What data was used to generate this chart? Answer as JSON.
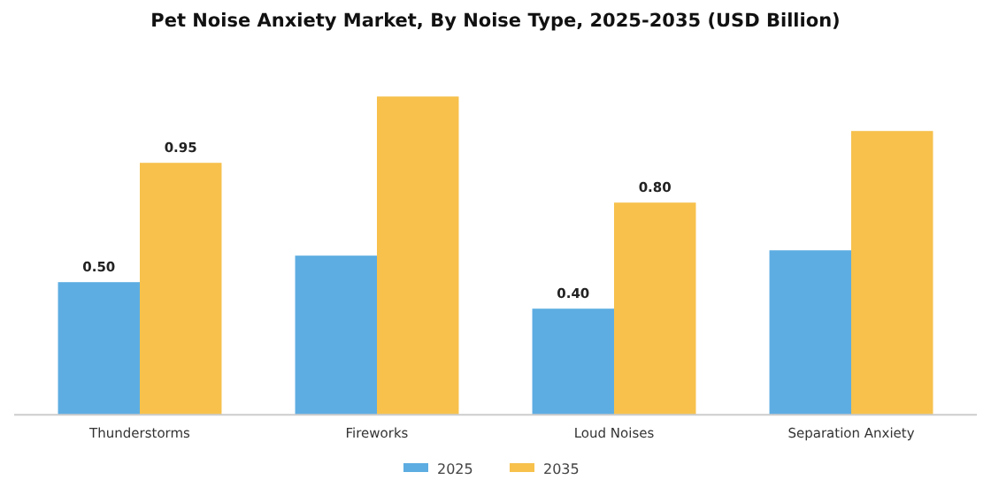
{
  "chart_data": {
    "type": "bar",
    "title": "Pet Noise Anxiety Market, By Noise Type, 2025-2035 (USD Billion)",
    "categories": [
      "Thunderstorms",
      "Fireworks",
      "Loud Noises",
      "Separation Anxiety"
    ],
    "series": [
      {
        "name": "2025",
        "color": "#5dade2",
        "values": [
          0.5,
          0.6,
          0.4,
          0.62
        ],
        "value_labels": [
          "0.50",
          null,
          "0.40",
          null
        ]
      },
      {
        "name": "2035",
        "color": "#f7c14c",
        "values": [
          0.95,
          1.2,
          0.8,
          1.07
        ],
        "value_labels": [
          "0.95",
          null,
          "0.80",
          null
        ]
      }
    ],
    "legend": "bottom"
  }
}
